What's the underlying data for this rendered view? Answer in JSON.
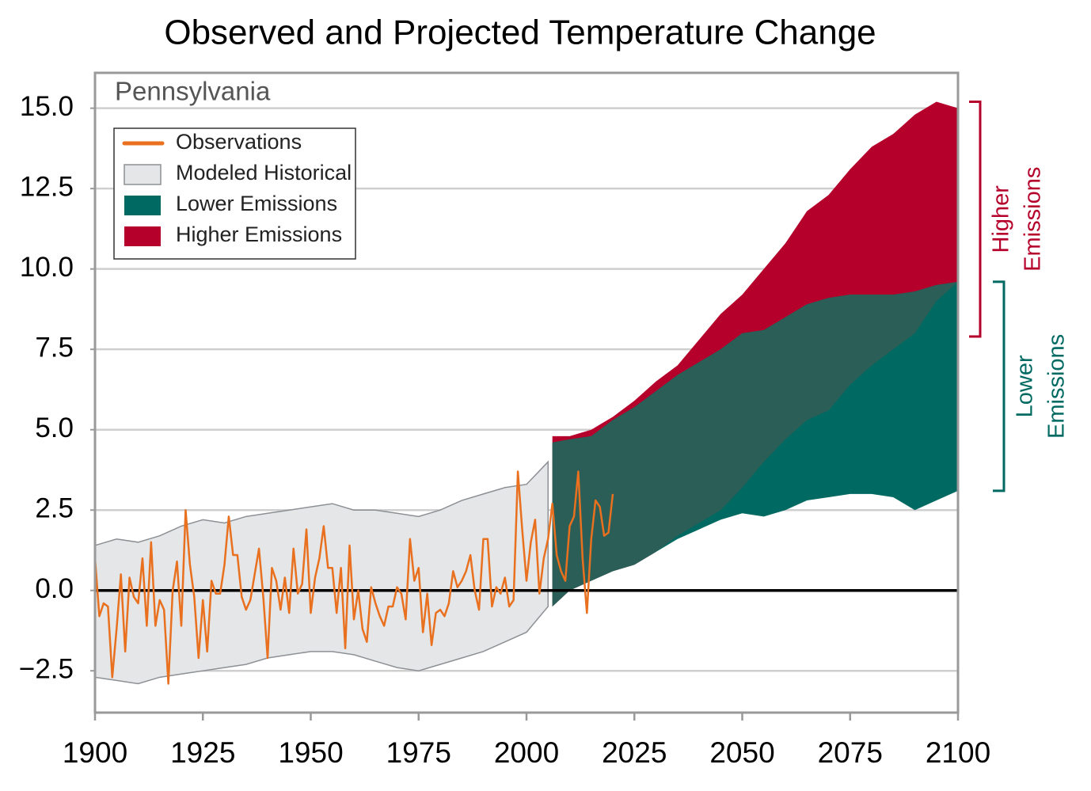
{
  "chart_data": {
    "type": "line",
    "title": "Observed and Projected Temperature Change",
    "subtitle": "Pennsylvania",
    "xlim": [
      1900,
      2100
    ],
    "xticks": [
      1900,
      1925,
      1950,
      1975,
      2000,
      2025,
      2050,
      2075,
      2100
    ],
    "ylim": [
      -3.8,
      16.1
    ],
    "yticks": [
      {
        "value": -2.5,
        "label": "−2.5"
      },
      {
        "value": 0,
        "label": "0.0"
      },
      2.5,
      {
        "value": 5,
        "label": "5.0"
      },
      7.5,
      {
        "value": 10,
        "label": "10.0"
      },
      12.5,
      {
        "value": 15,
        "label": "15.0"
      }
    ],
    "grid": true,
    "legend": "upper left",
    "series": [
      {
        "name": "Modeled Historical",
        "kind": "band",
        "color": "#e5e6e8",
        "edge": "#8d9094",
        "x": [
          1900,
          1905,
          1910,
          1915,
          1920,
          1925,
          1930,
          1935,
          1940,
          1945,
          1950,
          1955,
          1960,
          1965,
          1970,
          1975,
          1980,
          1985,
          1990,
          1995,
          2000,
          2005
        ],
        "upper": [
          1.4,
          1.6,
          1.5,
          1.7,
          2.0,
          2.2,
          2.1,
          2.3,
          2.4,
          2.5,
          2.6,
          2.7,
          2.5,
          2.5,
          2.4,
          2.3,
          2.5,
          2.8,
          3.0,
          3.2,
          3.3,
          4.0
        ],
        "lower": [
          -2.7,
          -2.8,
          -2.9,
          -2.7,
          -2.6,
          -2.5,
          -2.4,
          -2.3,
          -2.1,
          -2.0,
          -1.9,
          -1.9,
          -2.0,
          -2.2,
          -2.4,
          -2.5,
          -2.3,
          -2.1,
          -1.9,
          -1.6,
          -1.3,
          -0.5
        ]
      },
      {
        "name": "Higher Emissions",
        "kind": "band",
        "color": "#b5002b",
        "x": [
          2006,
          2010,
          2015,
          2020,
          2025,
          2030,
          2035,
          2040,
          2045,
          2050,
          2055,
          2060,
          2065,
          2070,
          2075,
          2080,
          2085,
          2090,
          2095,
          2100
        ],
        "upper": [
          4.8,
          4.8,
          5.0,
          5.4,
          5.9,
          6.5,
          7.0,
          7.8,
          8.6,
          9.2,
          10.0,
          10.8,
          11.8,
          12.3,
          13.1,
          13.8,
          14.2,
          14.8,
          15.2,
          15.0
        ],
        "lower": [
          -0.5,
          0.0,
          0.3,
          0.6,
          0.8,
          1.2,
          1.7,
          2.1,
          2.5,
          3.2,
          4.0,
          4.7,
          5.3,
          5.6,
          6.4,
          7.0,
          7.5,
          8.0,
          9.0,
          9.6
        ]
      },
      {
        "name": "Lower Emissions",
        "kind": "band",
        "color": "#006a62",
        "overlap_color": "#2b5e57",
        "x": [
          2006,
          2010,
          2015,
          2020,
          2025,
          2030,
          2035,
          2040,
          2045,
          2050,
          2055,
          2060,
          2065,
          2070,
          2075,
          2080,
          2085,
          2090,
          2095,
          2100
        ],
        "upper": [
          4.6,
          4.7,
          4.8,
          5.3,
          5.7,
          6.2,
          6.7,
          7.1,
          7.5,
          8.0,
          8.1,
          8.5,
          8.9,
          9.1,
          9.2,
          9.2,
          9.2,
          9.3,
          9.5,
          9.6
        ],
        "lower": [
          -0.5,
          0.0,
          0.3,
          0.6,
          0.8,
          1.2,
          1.6,
          1.9,
          2.2,
          2.4,
          2.3,
          2.5,
          2.8,
          2.9,
          3.0,
          3.0,
          2.9,
          2.5,
          2.8,
          3.1
        ]
      },
      {
        "name": "Observations",
        "kind": "line",
        "color": "#e8701e",
        "x": [
          1900,
          1901,
          1902,
          1903,
          1904,
          1905,
          1906,
          1907,
          1908,
          1909,
          1910,
          1911,
          1912,
          1913,
          1914,
          1915,
          1916,
          1917,
          1918,
          1919,
          1920,
          1921,
          1922,
          1923,
          1924,
          1925,
          1926,
          1927,
          1928,
          1929,
          1930,
          1931,
          1932,
          1933,
          1934,
          1935,
          1936,
          1937,
          1938,
          1939,
          1940,
          1941,
          1942,
          1943,
          1944,
          1945,
          1946,
          1947,
          1948,
          1949,
          1950,
          1951,
          1952,
          1953,
          1954,
          1955,
          1956,
          1957,
          1958,
          1959,
          1960,
          1961,
          1962,
          1963,
          1964,
          1965,
          1966,
          1967,
          1968,
          1969,
          1970,
          1971,
          1972,
          1973,
          1974,
          1975,
          1976,
          1977,
          1978,
          1979,
          1980,
          1981,
          1982,
          1983,
          1984,
          1985,
          1986,
          1987,
          1988,
          1989,
          1990,
          1991,
          1992,
          1993,
          1994,
          1995,
          1996,
          1997,
          1998,
          1999,
          2000,
          2001,
          2002,
          2003,
          2004,
          2005,
          2006,
          2007,
          2008,
          2009,
          2010,
          2011,
          2012,
          2013,
          2014,
          2015,
          2016,
          2017,
          2018,
          2019,
          2020
        ],
        "values": [
          1.0,
          -0.8,
          -0.4,
          -0.5,
          -2.7,
          -1.2,
          0.5,
          -1.9,
          0.4,
          -0.2,
          -0.4,
          1.0,
          -1.1,
          1.5,
          -1.1,
          -0.3,
          -0.6,
          -2.9,
          0.0,
          0.9,
          -1.1,
          2.5,
          0.8,
          -0.2,
          -2.1,
          -0.3,
          -1.9,
          0.3,
          -0.1,
          -0.1,
          0.8,
          2.3,
          1.1,
          1.1,
          -0.2,
          -0.6,
          -0.3,
          0.5,
          1.3,
          -0.2,
          -2.1,
          0.7,
          0.3,
          -0.6,
          0.4,
          -0.7,
          1.3,
          -0.1,
          0.2,
          1.9,
          -0.7,
          0.4,
          1.0,
          2.0,
          0.7,
          0.7,
          -0.7,
          0.7,
          -1.8,
          1.4,
          -0.9,
          0.0,
          -1.2,
          -1.6,
          0.1,
          -0.4,
          -0.8,
          -1.1,
          -0.5,
          -0.5,
          0.1,
          -0.1,
          -0.9,
          1.6,
          0.3,
          0.7,
          -1.3,
          -0.1,
          -1.7,
          -0.7,
          -0.6,
          -0.8,
          -0.4,
          0.6,
          0.1,
          0.3,
          0.6,
          1.1,
          0.0,
          -0.6,
          1.6,
          1.6,
          -0.5,
          0.1,
          -0.1,
          0.4,
          -0.5,
          -0.3,
          3.7,
          1.9,
          0.3,
          1.5,
          2.2,
          -0.1,
          1.0,
          1.6,
          2.7,
          1.1,
          0.6,
          0.3,
          2.0,
          2.3,
          3.7,
          1.0,
          -0.7,
          1.6,
          2.8,
          2.6,
          1.7,
          1.8,
          3.0
        ]
      }
    ],
    "legend_order": [
      3,
      0,
      2,
      1
    ],
    "annotations": [
      {
        "lines": [
          "Higher",
          "Emissions"
        ],
        "range": [
          7.9,
          15.2
        ],
        "color": "#b5002b"
      },
      {
        "lines": [
          "Lower",
          "Emissions"
        ],
        "range": [
          3.1,
          9.6
        ],
        "color": "#006a62"
      }
    ]
  }
}
